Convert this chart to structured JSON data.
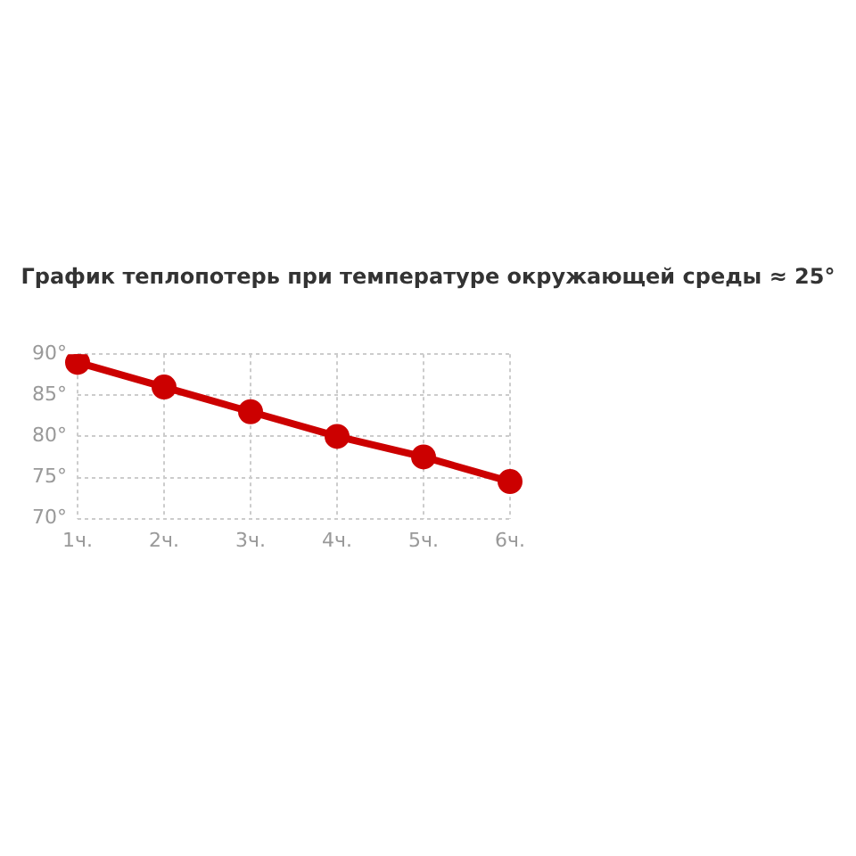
{
  "chart_data": {
    "type": "line",
    "title": "График теплопотерь при температуре окружающей среды ≈ 25°",
    "categories": [
      "1ч.",
      "2ч.",
      "3ч.",
      "4ч.",
      "5ч.",
      "6ч."
    ],
    "series": [
      {
        "color": "#cc0000",
        "values": [
          89,
          86,
          83,
          80,
          77.5,
          74.5
        ]
      }
    ],
    "ylim": [
      70,
      90
    ],
    "yticks": [
      {
        "value": 70,
        "label": "70°"
      },
      {
        "value": 75,
        "label": "75°"
      },
      {
        "value": 80,
        "label": "80°"
      },
      {
        "value": 85,
        "label": "85°"
      },
      {
        "value": 90,
        "label": "90°"
      }
    ],
    "grid": true,
    "legend": false,
    "marker": "circle",
    "line_style": "solid"
  }
}
